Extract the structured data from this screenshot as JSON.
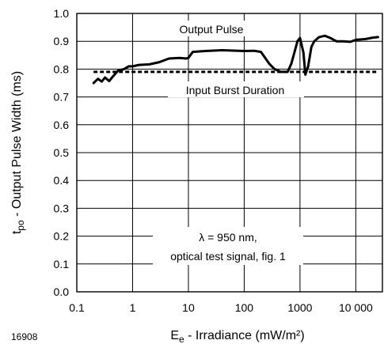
{
  "chart_data": {
    "type": "line",
    "figure_id": "16908",
    "x_scale": "log",
    "xlim": [
      0.1,
      30000
    ],
    "ylim": [
      0.0,
      1.0
    ],
    "grid": true,
    "xlabel": {
      "main": "E",
      "sub": "e",
      "rest": " - Irradiance (mW/m²)"
    },
    "ylabel": {
      "main": "t",
      "sub": "po",
      "rest": " - Output Pulse Width (ms)"
    },
    "x_ticks": [
      {
        "value": 0.1,
        "label": "0.1"
      },
      {
        "value": 1,
        "label": "1"
      },
      {
        "value": 10,
        "label": "10"
      },
      {
        "value": 100,
        "label": "100"
      },
      {
        "value": 1000,
        "label": "1000"
      },
      {
        "value": 10000,
        "label": "10 000"
      }
    ],
    "y_ticks": [
      {
        "value": 0.0,
        "label": "0.0"
      },
      {
        "value": 0.1,
        "label": "0.1"
      },
      {
        "value": 0.2,
        "label": "0.2"
      },
      {
        "value": 0.3,
        "label": "0.3"
      },
      {
        "value": 0.4,
        "label": "0.4"
      },
      {
        "value": 0.5,
        "label": "0.5"
      },
      {
        "value": 0.6,
        "label": "0.6"
      },
      {
        "value": 0.7,
        "label": "0.7"
      },
      {
        "value": 0.8,
        "label": "0.8"
      },
      {
        "value": 0.9,
        "label": "0.9"
      },
      {
        "value": 1.0,
        "label": "1.0"
      }
    ],
    "series": [
      {
        "name": "Output Pulse",
        "style": "solid",
        "x": [
          0.2,
          0.24,
          0.28,
          0.32,
          0.38,
          0.45,
          0.55,
          0.7,
          0.85,
          1.0,
          1.3,
          2.0,
          3.0,
          4.5,
          7,
          9,
          10,
          12,
          20,
          40,
          80,
          100,
          150,
          200,
          280,
          350,
          450,
          550,
          600,
          700,
          900,
          1000,
          1150,
          1250,
          1400,
          1600,
          1800,
          2200,
          2800,
          3500,
          4500,
          6000,
          8000,
          10000,
          15000,
          20000,
          25000
        ],
        "y": [
          0.75,
          0.765,
          0.755,
          0.77,
          0.757,
          0.775,
          0.795,
          0.8,
          0.81,
          0.81,
          0.815,
          0.817,
          0.825,
          0.838,
          0.84,
          0.838,
          0.84,
          0.862,
          0.865,
          0.868,
          0.866,
          0.865,
          0.866,
          0.862,
          0.82,
          0.8,
          0.79,
          0.79,
          0.79,
          0.82,
          0.9,
          0.912,
          0.86,
          0.78,
          0.81,
          0.88,
          0.9,
          0.915,
          0.92,
          0.912,
          0.9,
          0.9,
          0.898,
          0.905,
          0.908,
          0.913,
          0.915
        ]
      },
      {
        "name": "Input Burst Duration",
        "style": "dashed",
        "x": [
          0.2,
          25000
        ],
        "y": [
          0.79,
          0.79
        ]
      }
    ],
    "annotations": {
      "output_label": "Output Pulse",
      "input_label": "Input Burst Duration",
      "condition_line1": "λ = 950 nm,",
      "condition_line2": "optical test signal, fig. 1"
    }
  }
}
